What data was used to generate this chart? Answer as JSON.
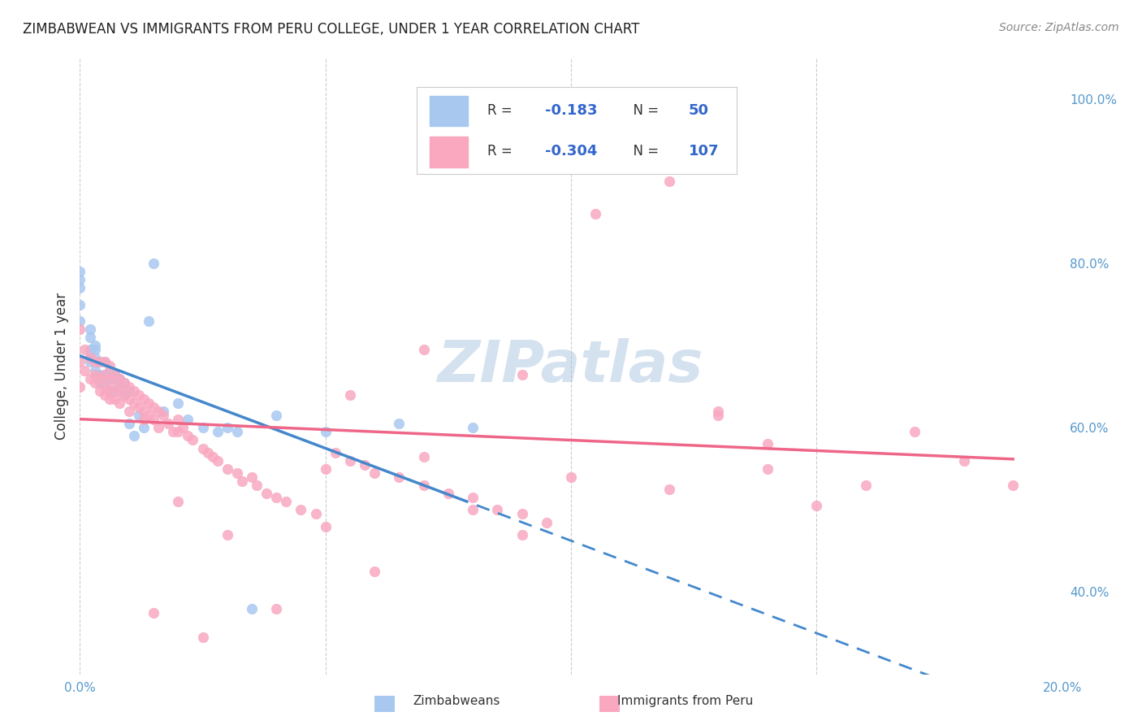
{
  "title": "ZIMBABWEAN VS IMMIGRANTS FROM PERU COLLEGE, UNDER 1 YEAR CORRELATION CHART",
  "source": "Source: ZipAtlas.com",
  "xlabel": "",
  "ylabel": "College, Under 1 year",
  "xlim": [
    0.0,
    0.2
  ],
  "ylim": [
    0.3,
    1.05
  ],
  "xticks": [
    0.0,
    0.05,
    0.1,
    0.15,
    0.2
  ],
  "xticklabels": [
    "0.0%",
    "",
    "",
    "",
    "20.0%"
  ],
  "yticks_right": [
    0.4,
    0.6,
    0.8,
    1.0
  ],
  "yticklabels_right": [
    "40.0%",
    "60.0%",
    "80.0%",
    "100.0%"
  ],
  "background_color": "#ffffff",
  "grid_color": "#cccccc",
  "watermark_text": "ZIPatlas",
  "watermark_color": "#aac4e0",
  "legend_R_zim": "-0.183",
  "legend_N_zim": "50",
  "legend_R_peru": "-0.304",
  "legend_N_peru": "107",
  "zim_color": "#a8c8f0",
  "peru_color": "#f9a8c0",
  "zim_line_color": "#4488cc",
  "peru_line_color": "#ee6688",
  "zim_scatter_x": [
    0.0,
    0.0,
    0.0,
    0.0,
    0.0,
    0.002,
    0.002,
    0.002,
    0.002,
    0.002,
    0.003,
    0.003,
    0.003,
    0.003,
    0.004,
    0.004,
    0.004,
    0.005,
    0.005,
    0.005,
    0.005,
    0.006,
    0.006,
    0.006,
    0.007,
    0.007,
    0.007,
    0.008,
    0.008,
    0.009,
    0.009,
    0.01,
    0.01,
    0.011,
    0.012,
    0.013,
    0.014,
    0.015,
    0.017,
    0.02,
    0.022,
    0.025,
    0.028,
    0.03,
    0.032,
    0.035,
    0.04,
    0.05,
    0.065,
    0.08
  ],
  "zim_scatter_y": [
    0.75,
    0.77,
    0.79,
    0.78,
    0.73,
    0.72,
    0.71,
    0.695,
    0.685,
    0.68,
    0.7,
    0.695,
    0.685,
    0.67,
    0.68,
    0.665,
    0.655,
    0.68,
    0.665,
    0.66,
    0.655,
    0.67,
    0.66,
    0.645,
    0.665,
    0.66,
    0.645,
    0.66,
    0.65,
    0.655,
    0.64,
    0.645,
    0.605,
    0.59,
    0.615,
    0.6,
    0.73,
    0.8,
    0.62,
    0.63,
    0.61,
    0.6,
    0.595,
    0.6,
    0.595,
    0.38,
    0.615,
    0.595,
    0.605,
    0.6
  ],
  "peru_scatter_x": [
    0.0,
    0.0,
    0.0,
    0.001,
    0.001,
    0.002,
    0.002,
    0.003,
    0.003,
    0.003,
    0.004,
    0.004,
    0.004,
    0.005,
    0.005,
    0.005,
    0.005,
    0.006,
    0.006,
    0.006,
    0.006,
    0.007,
    0.007,
    0.007,
    0.008,
    0.008,
    0.008,
    0.009,
    0.009,
    0.01,
    0.01,
    0.01,
    0.011,
    0.011,
    0.012,
    0.012,
    0.013,
    0.013,
    0.013,
    0.014,
    0.014,
    0.015,
    0.015,
    0.016,
    0.016,
    0.017,
    0.018,
    0.019,
    0.02,
    0.02,
    0.021,
    0.022,
    0.023,
    0.025,
    0.026,
    0.027,
    0.028,
    0.03,
    0.032,
    0.033,
    0.035,
    0.036,
    0.038,
    0.04,
    0.042,
    0.045,
    0.048,
    0.05,
    0.052,
    0.055,
    0.058,
    0.06,
    0.065,
    0.07,
    0.075,
    0.08,
    0.085,
    0.09,
    0.095,
    0.1,
    0.105,
    0.11,
    0.115,
    0.12,
    0.13,
    0.14,
    0.15,
    0.16,
    0.17,
    0.18,
    0.19,
    0.12,
    0.08,
    0.07,
    0.13,
    0.14,
    0.09,
    0.06,
    0.04,
    0.02,
    0.03,
    0.015,
    0.025,
    0.05,
    0.055,
    0.07,
    0.09
  ],
  "peru_scatter_y": [
    0.72,
    0.68,
    0.65,
    0.695,
    0.67,
    0.685,
    0.66,
    0.68,
    0.665,
    0.655,
    0.68,
    0.66,
    0.645,
    0.68,
    0.665,
    0.65,
    0.64,
    0.675,
    0.66,
    0.645,
    0.635,
    0.665,
    0.65,
    0.635,
    0.66,
    0.645,
    0.63,
    0.655,
    0.64,
    0.65,
    0.635,
    0.62,
    0.645,
    0.63,
    0.64,
    0.625,
    0.635,
    0.62,
    0.61,
    0.63,
    0.615,
    0.625,
    0.61,
    0.62,
    0.6,
    0.615,
    0.605,
    0.595,
    0.61,
    0.595,
    0.6,
    0.59,
    0.585,
    0.575,
    0.57,
    0.565,
    0.56,
    0.55,
    0.545,
    0.535,
    0.54,
    0.53,
    0.52,
    0.515,
    0.51,
    0.5,
    0.495,
    0.48,
    0.57,
    0.56,
    0.555,
    0.545,
    0.54,
    0.53,
    0.52,
    0.515,
    0.5,
    0.495,
    0.485,
    0.54,
    0.86,
    0.92,
    0.95,
    0.9,
    0.62,
    0.58,
    0.505,
    0.53,
    0.595,
    0.56,
    0.53,
    0.525,
    0.5,
    0.695,
    0.615,
    0.55,
    0.665,
    0.425,
    0.38,
    0.51,
    0.47,
    0.375,
    0.345,
    0.55,
    0.64,
    0.565,
    0.47
  ]
}
